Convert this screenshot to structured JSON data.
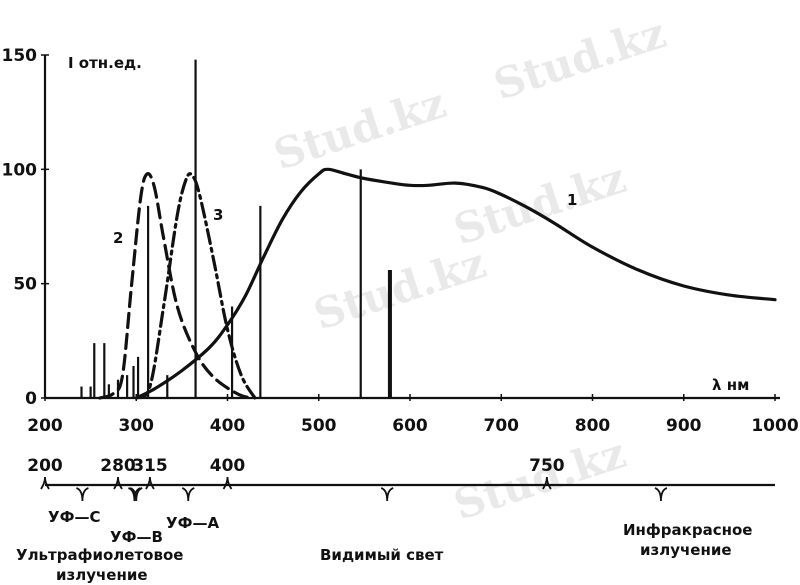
{
  "chart_data": {
    "type": "line",
    "ylabel": "I отн.ед.",
    "xlabel": "λ нм",
    "xlim": [
      200,
      1000
    ],
    "ylim": [
      0,
      150
    ],
    "x_ticks": [
      200,
      300,
      400,
      500,
      600,
      700,
      800,
      900,
      1000
    ],
    "y_ticks": [
      0,
      50,
      100,
      150
    ],
    "series": [
      {
        "name": "1",
        "style": "solid",
        "x": [
          300,
          320,
          350,
          380,
          400,
          420,
          440,
          460,
          480,
          500,
          510,
          530,
          550,
          580,
          600,
          620,
          650,
          680,
          700,
          730,
          760,
          800,
          850,
          900,
          950,
          1000
        ],
        "y": [
          0,
          4,
          12,
          22,
          32,
          45,
          62,
          78,
          90,
          98,
          100,
          98,
          96,
          94,
          93,
          93,
          94,
          92,
          89,
          83,
          76,
          66,
          56,
          49,
          45,
          43
        ]
      },
      {
        "name": "2",
        "style": "dashed",
        "x": [
          260,
          275,
          285,
          295,
          305,
          312,
          320,
          330,
          345,
          365,
          385,
          410,
          425
        ],
        "y": [
          0,
          2,
          10,
          50,
          88,
          98,
          92,
          70,
          40,
          20,
          9,
          2,
          0
        ]
      },
      {
        "name": "3",
        "style": "dash-dot",
        "x": [
          300,
          315,
          330,
          345,
          355,
          362,
          370,
          385,
          400,
          415,
          430
        ],
        "y": [
          0,
          5,
          40,
          80,
          96,
          97,
          88,
          60,
          30,
          10,
          0
        ]
      }
    ],
    "spectral_lines": [
      {
        "x": 240,
        "y": 5
      },
      {
        "x": 250,
        "y": 5
      },
      {
        "x": 254,
        "y": 24
      },
      {
        "x": 265,
        "y": 24
      },
      {
        "x": 270,
        "y": 6
      },
      {
        "x": 280,
        "y": 8
      },
      {
        "x": 290,
        "y": 10
      },
      {
        "x": 297,
        "y": 14
      },
      {
        "x": 302,
        "y": 18
      },
      {
        "x": 313,
        "y": 84
      },
      {
        "x": 334,
        "y": 10
      },
      {
        "x": 365,
        "y": 148
      },
      {
        "x": 405,
        "y": 40
      },
      {
        "x": 436,
        "y": 84
      },
      {
        "x": 546,
        "y": 100
      },
      {
        "x": 577,
        "y": 56
      },
      {
        "x": 579,
        "y": 56
      }
    ]
  },
  "labels": {
    "curve1": "1",
    "curve2": "2",
    "curve3": "3"
  },
  "scale": {
    "ticks": [
      {
        "value": 200,
        "label": "200"
      },
      {
        "value": 280,
        "label": "280"
      },
      {
        "value": 315,
        "label": "315"
      },
      {
        "value": 400,
        "label": "400"
      },
      {
        "value": 750,
        "label": "750"
      }
    ],
    "uvc": "УФ—С",
    "uvb": "УФ—В",
    "uva": "УФ—А",
    "uv_line1": "Ультрафиолетовое",
    "uv_line2": "излучение",
    "visible": "Видимый свет",
    "ir_line1": "Инфракрасное",
    "ir_line2": "излучение"
  },
  "watermark": "Stud.kz"
}
